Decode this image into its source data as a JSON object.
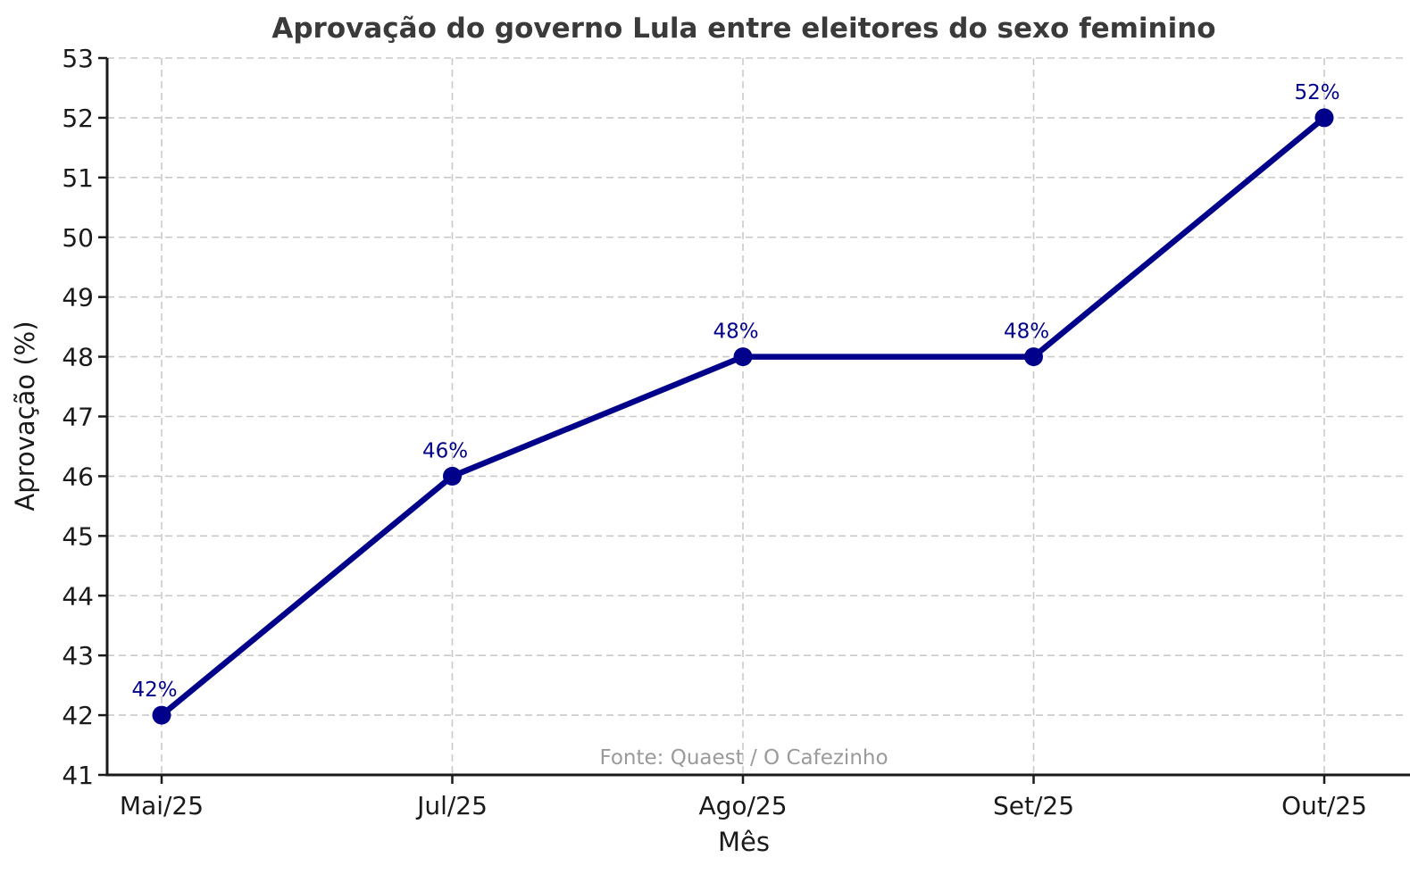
{
  "chart_data": {
    "type": "line",
    "title": "Aprovação do governo Lula entre eleitores do sexo feminino",
    "xlabel": "Mês",
    "ylabel": "Aprovação (%)",
    "categories": [
      "Mai/25",
      "Jul/25",
      "Ago/25",
      "Set/25",
      "Out/25"
    ],
    "series": [
      {
        "name": "Aprovação",
        "values": [
          42,
          46,
          48,
          48,
          52
        ],
        "point_labels": [
          "42%",
          "46%",
          "48%",
          "48%",
          "52%"
        ]
      }
    ],
    "ylim": [
      41,
      53
    ],
    "ytick_step": 1,
    "grid": "dashed",
    "legend_position": "none",
    "source_note": "Fonte: Quaest / O Cafezinho",
    "colors": {
      "line": "#00008B",
      "marker": "#00008B",
      "point_label": "#00008B",
      "title": "#3a3a3a",
      "tick_text": "#1a1a1a",
      "grid": "#c9c9c9",
      "spine": "#1a1a1a",
      "source_note": "#9a9a9a"
    }
  }
}
